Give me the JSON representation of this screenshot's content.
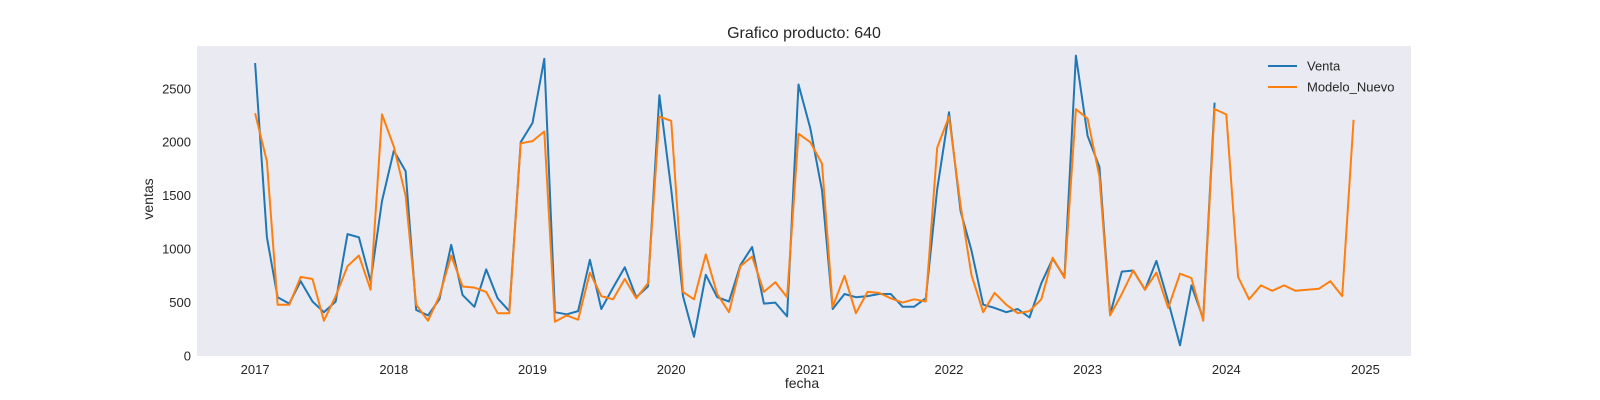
{
  "chart_data": {
    "type": "line",
    "title": "Grafico producto: 640",
    "xlabel": "fecha",
    "ylabel": "ventas",
    "xlim": [
      "2016-08-01",
      "2025-05-01"
    ],
    "ylim": [
      0,
      2900
    ],
    "yticks": [
      0,
      500,
      1000,
      1500,
      2000,
      2500
    ],
    "xticks": [
      "2017-01-01",
      "2018-01-01",
      "2019-01-01",
      "2020-01-01",
      "2021-01-01",
      "2022-01-01",
      "2023-01-01",
      "2024-01-01",
      "2025-01-01"
    ],
    "xtick_labels": [
      "2017",
      "2018",
      "2019",
      "2020",
      "2021",
      "2022",
      "2023",
      "2024",
      "2025"
    ],
    "grid": false,
    "legend_position": "top-right",
    "background": "#eaeaf2",
    "series": [
      {
        "name": "Venta",
        "color": "#1f77b4",
        "x": [
          "2017-01",
          "2017-02",
          "2017-03",
          "2017-04",
          "2017-05",
          "2017-06",
          "2017-07",
          "2017-08",
          "2017-09",
          "2017-10",
          "2017-11",
          "2017-12",
          "2018-01",
          "2018-02",
          "2018-03",
          "2018-04",
          "2018-05",
          "2018-06",
          "2018-07",
          "2018-08",
          "2018-09",
          "2018-10",
          "2018-11",
          "2018-12",
          "2019-01",
          "2019-02",
          "2019-03",
          "2019-04",
          "2019-05",
          "2019-06",
          "2019-07",
          "2019-08",
          "2019-09",
          "2019-10",
          "2019-11",
          "2019-12",
          "2020-01",
          "2020-02",
          "2020-03",
          "2020-04",
          "2020-05",
          "2020-06",
          "2020-07",
          "2020-08",
          "2020-09",
          "2020-10",
          "2020-11",
          "2020-12",
          "2021-01",
          "2021-02",
          "2021-03",
          "2021-04",
          "2021-05",
          "2021-06",
          "2021-07",
          "2021-08",
          "2021-09",
          "2021-10",
          "2021-11",
          "2021-12",
          "2022-01",
          "2022-02",
          "2022-03",
          "2022-04",
          "2022-05",
          "2022-06",
          "2022-07",
          "2022-08",
          "2022-09",
          "2022-10",
          "2022-11",
          "2022-12",
          "2023-01",
          "2023-02",
          "2023-03",
          "2023-04",
          "2023-05",
          "2023-06",
          "2023-07",
          "2023-08",
          "2023-09",
          "2023-10",
          "2023-11",
          "2023-12"
        ],
        "values": [
          2740,
          1110,
          550,
          490,
          700,
          510,
          410,
          510,
          1140,
          1110,
          700,
          1450,
          1920,
          1730,
          430,
          380,
          530,
          1040,
          570,
          460,
          810,
          540,
          420,
          2000,
          2180,
          2780,
          410,
          390,
          420,
          900,
          440,
          640,
          830,
          550,
          650,
          2440,
          1560,
          560,
          180,
          760,
          550,
          510,
          850,
          1020,
          490,
          500,
          370,
          2540,
          2130,
          1550,
          440,
          580,
          550,
          560,
          580,
          580,
          460,
          460,
          540,
          1560,
          2280,
          1350,
          990,
          480,
          450,
          410,
          440,
          360,
          680,
          910,
          740,
          2810,
          2060,
          1770,
          390,
          790,
          800,
          620,
          890,
          510,
          100,
          660,
          350,
          2370
        ]
      },
      {
        "name": "Modelo_Nuevo",
        "color": "#ff7f0e",
        "x": [
          "2017-01",
          "2017-02",
          "2017-03",
          "2017-04",
          "2017-05",
          "2017-06",
          "2017-07",
          "2017-08",
          "2017-09",
          "2017-10",
          "2017-11",
          "2017-12",
          "2018-01",
          "2018-02",
          "2018-03",
          "2018-04",
          "2018-05",
          "2018-06",
          "2018-07",
          "2018-08",
          "2018-09",
          "2018-10",
          "2018-11",
          "2018-12",
          "2019-01",
          "2019-02",
          "2019-03",
          "2019-04",
          "2019-05",
          "2019-06",
          "2019-07",
          "2019-08",
          "2019-09",
          "2019-10",
          "2019-11",
          "2019-12",
          "2020-01",
          "2020-02",
          "2020-03",
          "2020-04",
          "2020-05",
          "2020-06",
          "2020-07",
          "2020-08",
          "2020-09",
          "2020-10",
          "2020-11",
          "2020-12",
          "2021-01",
          "2021-02",
          "2021-03",
          "2021-04",
          "2021-05",
          "2021-06",
          "2021-07",
          "2021-08",
          "2021-09",
          "2021-10",
          "2021-11",
          "2021-12",
          "2022-01",
          "2022-02",
          "2022-03",
          "2022-04",
          "2022-05",
          "2022-06",
          "2022-07",
          "2022-08",
          "2022-09",
          "2022-10",
          "2022-11",
          "2022-12",
          "2023-01",
          "2023-02",
          "2023-03",
          "2023-04",
          "2023-05",
          "2023-06",
          "2023-07",
          "2023-08",
          "2023-09",
          "2023-10",
          "2023-11",
          "2023-12",
          "2024-01",
          "2024-02",
          "2024-03",
          "2024-04",
          "2024-05",
          "2024-06",
          "2024-07",
          "2024-08",
          "2024-09",
          "2024-10",
          "2024-11",
          "2024-12"
        ],
        "values": [
          2270,
          1820,
          480,
          480,
          740,
          720,
          330,
          560,
          840,
          940,
          620,
          2260,
          1960,
          1500,
          480,
          330,
          560,
          940,
          650,
          640,
          600,
          400,
          400,
          1990,
          2010,
          2100,
          320,
          380,
          340,
          780,
          560,
          530,
          720,
          540,
          680,
          2240,
          2200,
          600,
          530,
          950,
          580,
          410,
          840,
          930,
          600,
          690,
          550,
          2080,
          2000,
          1800,
          460,
          750,
          400,
          600,
          590,
          540,
          500,
          530,
          510,
          1950,
          2240,
          1400,
          760,
          410,
          590,
          480,
          400,
          420,
          530,
          920,
          730,
          2310,
          2220,
          1680,
          380,
          580,
          800,
          620,
          780,
          450,
          770,
          730,
          330,
          2310,
          2260,
          740,
          530,
          660,
          610,
          660,
          610,
          620,
          630,
          700,
          560,
          2210
        ]
      }
    ]
  }
}
